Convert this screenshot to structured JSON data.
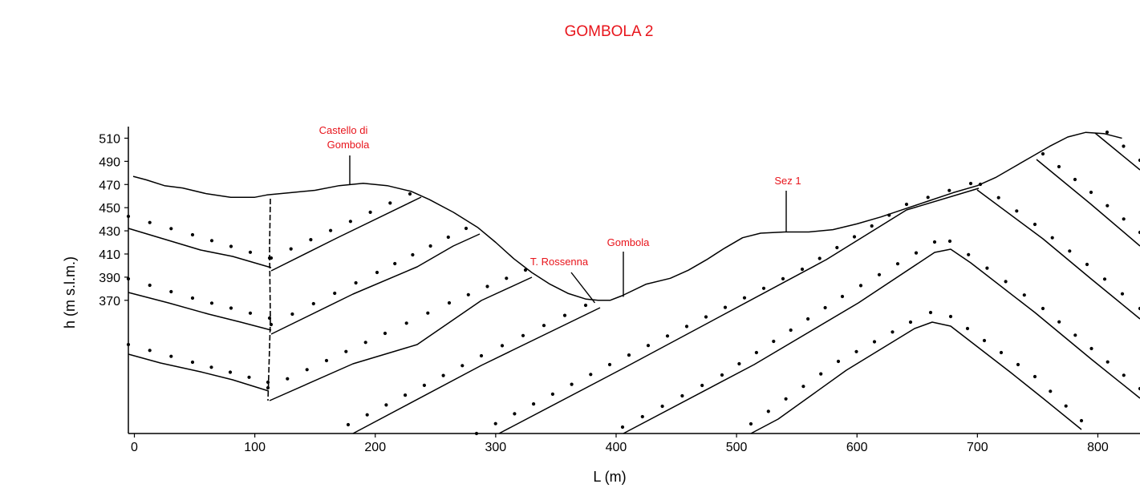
{
  "chart_data": {
    "type": "line",
    "title": "GOMBOLA 2",
    "xlabel": "L (m)",
    "ylabel": "h (m s.l.m.)",
    "xlim": [
      -5,
      835
    ],
    "ylim": [
      255,
      520
    ],
    "x_ticks": [
      "0",
      "100",
      "200",
      "300",
      "400",
      "500",
      "600",
      "700",
      "800"
    ],
    "y_ticks": [
      "510",
      "490",
      "470",
      "450",
      "430",
      "410",
      "390",
      "370"
    ],
    "annotations": [
      {
        "lines": [
          "Castello di",
          "Gombola"
        ],
        "x": 176,
        "y": 470
      },
      {
        "lines": [
          "T. Rossenna"
        ],
        "x": 385,
        "y": 372
      },
      {
        "lines": [
          "Gombola"
        ],
        "x": 403,
        "y": 373
      },
      {
        "lines": [
          "Sez 1"
        ],
        "x": 538,
        "y": 429
      }
    ],
    "topography": [
      [
        -1,
        477
      ],
      [
        10,
        474
      ],
      [
        25,
        469
      ],
      [
        40,
        467
      ],
      [
        60,
        462
      ],
      [
        80,
        459
      ],
      [
        100,
        459
      ],
      [
        110,
        461
      ],
      [
        130,
        463
      ],
      [
        150,
        465
      ],
      [
        170,
        469
      ],
      [
        190,
        471
      ],
      [
        210,
        469
      ],
      [
        230,
        464
      ],
      [
        245,
        457
      ],
      [
        265,
        446
      ],
      [
        285,
        433
      ],
      [
        300,
        420
      ],
      [
        315,
        406
      ],
      [
        330,
        394
      ],
      [
        345,
        384
      ],
      [
        360,
        376
      ],
      [
        375,
        371
      ],
      [
        385,
        370
      ],
      [
        395,
        370
      ],
      [
        405,
        374
      ],
      [
        425,
        384
      ],
      [
        445,
        389
      ],
      [
        460,
        396
      ],
      [
        475,
        405
      ],
      [
        490,
        415
      ],
      [
        505,
        424
      ],
      [
        520,
        428
      ],
      [
        540,
        429
      ],
      [
        560,
        429
      ],
      [
        580,
        431
      ],
      [
        600,
        436
      ],
      [
        620,
        442
      ],
      [
        640,
        449
      ],
      [
        660,
        456
      ],
      [
        680,
        463
      ],
      [
        700,
        469
      ],
      [
        715,
        476
      ],
      [
        730,
        485
      ],
      [
        745,
        494
      ],
      [
        760,
        503
      ],
      [
        775,
        511
      ],
      [
        790,
        515
      ],
      [
        805,
        514
      ],
      [
        820,
        510
      ]
    ]
  }
}
